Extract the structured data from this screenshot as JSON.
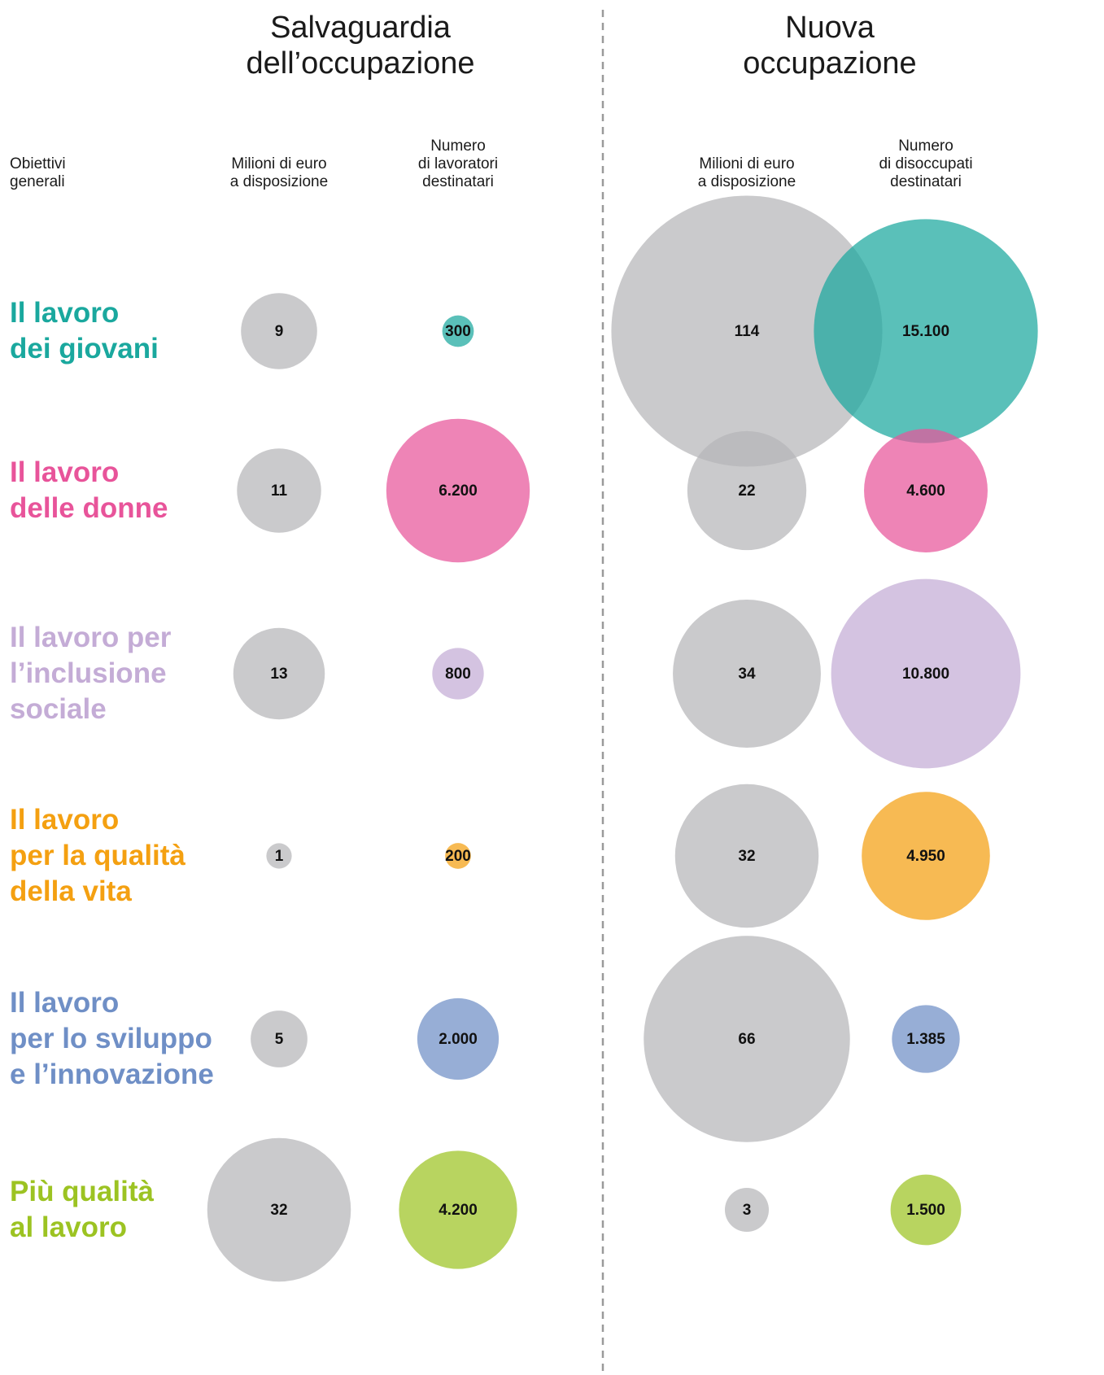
{
  "chart_data": {
    "type": "bubble",
    "category_header": "Obiettivi\ngenerali",
    "categories": [
      "Il lavoro\ndei giovani",
      "Il lavoro\ndelle donne",
      "Il lavoro per\nl’inclusione\nsociale",
      "Il lavoro\nper la qualità\ndella vita",
      "Il lavoro\nper lo sviluppo\ne l’innovazione",
      "Più qualità\nal lavoro"
    ],
    "category_colors": [
      "#1aa89e",
      "#e8549a",
      "#c4acd6",
      "#f4a011",
      "#6f8fc6",
      "#9cc322"
    ],
    "sections": [
      {
        "title": "Salvaguardia\ndell’occupazione",
        "series": [
          {
            "name": "Milioni di euro\na disposizione",
            "color": "#b5b6b8",
            "values": [
              9,
              11,
              13,
              1,
              5,
              32
            ]
          },
          {
            "name": "Numero\ndi lavoratori\ndestinatari",
            "values": [
              300,
              6200,
              800,
              200,
              2000,
              4200
            ],
            "value_labels": [
              "300",
              "6.200",
              "800",
              "200",
              "2.000",
              "4.200"
            ]
          }
        ]
      },
      {
        "title": "Nuova\noccupazione",
        "series": [
          {
            "name": "Milioni di euro\na disposizione",
            "color": "#b5b6b8",
            "values": [
              114,
              22,
              34,
              32,
              66,
              3
            ]
          },
          {
            "name": "Numero\ndi disoccupati\ndestinatari",
            "values": [
              15100,
              4600,
              10800,
              4950,
              1385,
              1500
            ],
            "value_labels": [
              "15.100",
              "4.600",
              "10.800",
              "4.950",
              "1.385",
              "1.500"
            ]
          }
        ]
      }
    ]
  }
}
